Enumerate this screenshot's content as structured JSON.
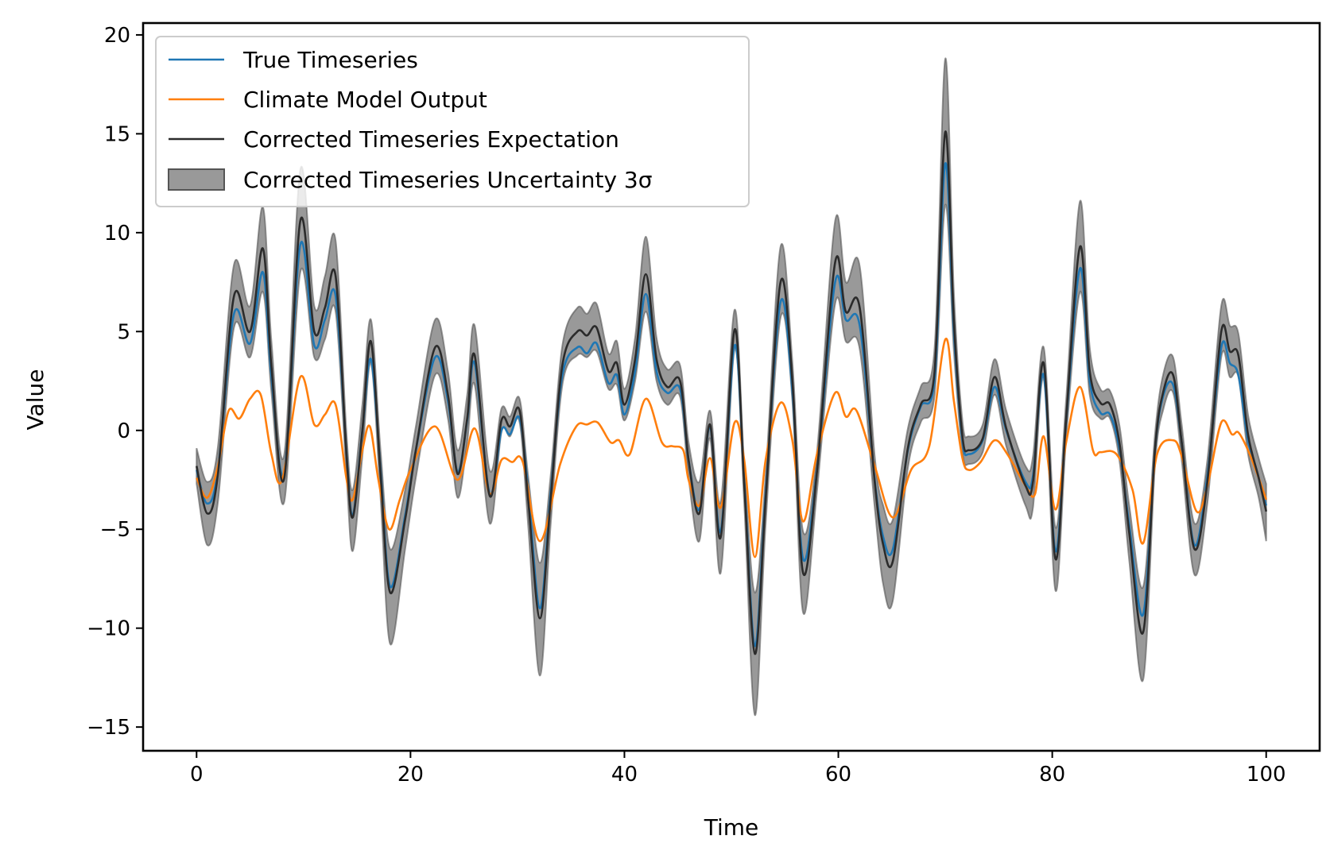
{
  "chart_data": {
    "type": "line",
    "xlabel": "Time",
    "ylabel": "Value",
    "xlim": [
      -5,
      105
    ],
    "ylim": [
      -16.2,
      20.6
    ],
    "xticks": [
      0,
      20,
      40,
      60,
      80,
      100
    ],
    "xtick_labels": [
      "0",
      "20",
      "40",
      "60",
      "80",
      "100"
    ],
    "yticks": [
      -15,
      -10,
      -5,
      0,
      5,
      10,
      15,
      20
    ],
    "ytick_labels": [
      "−15",
      "−10",
      "−5",
      "0",
      "5",
      "10",
      "15",
      "20"
    ],
    "grid": false,
    "legend_position": "top-left",
    "legend": [
      {
        "label": "True Timeseries",
        "kind": "line",
        "color": "#1f77b4"
      },
      {
        "label": "Climate Model Output",
        "kind": "line",
        "color": "#ff7f0e"
      },
      {
        "label": "Corrected Timeseries Expectation",
        "kind": "line",
        "color": "#2b2b2b"
      },
      {
        "label": "Corrected Timeseries Uncertainty 3σ",
        "kind": "band",
        "color": "#808080"
      }
    ],
    "series": [
      {
        "name": "True Timeseries",
        "color": "#1f77b4",
        "x": [
          0,
          1,
          2,
          3.5,
          5,
          6.2,
          7,
          8.2,
          9.7,
          11,
          12,
          13,
          14,
          14.6,
          15.5,
          16.3,
          17.2,
          18.1,
          19.5,
          20.5,
          22.3,
          23.5,
          24.4,
          25.3,
          26,
          27.4,
          28.5,
          29.3,
          30.2,
          31,
          32.1,
          33.1,
          34.2,
          35.6,
          36.5,
          37.4,
          38.5,
          39.3,
          40,
          41,
          42,
          43,
          44,
          45.2,
          46,
          47,
          48,
          49,
          50.3,
          51.2,
          52.2,
          53.2,
          54.6,
          55.7,
          56.7,
          58,
          59.7,
          60.7,
          62,
          63.4,
          64.2,
          65.1,
          66.5,
          67.7,
          69,
          70,
          70.8,
          71.6,
          72.2,
          73.5,
          74.6,
          75.7,
          77.5,
          78.2,
          79.2,
          80.3,
          81.3,
          82.6,
          83.5,
          84.5,
          85.4,
          86.3,
          87.2,
          88.5,
          89.6,
          90.4,
          91.3,
          92.1,
          93.3,
          94.5,
          95.8,
          96.6,
          97.4,
          98.3,
          99.3,
          100
        ],
        "y": [
          -2,
          -3.7,
          -2,
          5.9,
          4.4,
          8,
          2.7,
          -2.1,
          9.4,
          4.3,
          5.6,
          6.8,
          -1,
          -4.3,
          0,
          3.6,
          -2,
          -7.9,
          -4.3,
          -1,
          3.7,
          1.5,
          -2.1,
          0.5,
          3.4,
          -3.2,
          0,
          -0.2,
          0.6,
          -3,
          -9,
          -3.2,
          2.8,
          4.2,
          3.9,
          4.4,
          2.4,
          2.8,
          0.8,
          3,
          6.9,
          3,
          1.9,
          2.1,
          -1.5,
          -4,
          0.2,
          -5.1,
          4.3,
          -2.5,
          -10.9,
          -3.2,
          6.5,
          2,
          -6.5,
          -2,
          7.5,
          5.6,
          5.3,
          -2.5,
          -5.4,
          -6,
          -1,
          1.2,
          2.6,
          13.5,
          5,
          -0.5,
          -1.2,
          -0.5,
          2.2,
          0,
          -2.6,
          -2.3,
          2.8,
          -6.1,
          0.5,
          8.2,
          2.5,
          0.9,
          0.8,
          -1,
          -4.8,
          -9.3,
          -1,
          1.8,
          2.3,
          -0.6,
          -5.8,
          -2.3,
          4.2,
          3.4,
          2.8,
          -0.5,
          -2.4,
          -3.8
        ]
      },
      {
        "name": "Climate Model Output",
        "color": "#ff7f0e",
        "x": [
          0,
          1,
          2,
          3,
          4,
          5,
          6,
          7,
          8,
          9.7,
          11,
          12,
          13,
          14,
          14.6,
          15.5,
          16.2,
          17,
          18,
          19,
          20,
          22.3,
          24.4,
          26,
          27.4,
          28.5,
          29.5,
          30.5,
          32.1,
          34,
          35.5,
          36.5,
          37.5,
          38.7,
          39.5,
          40.5,
          42,
          43.5,
          44.5,
          45.5,
          46,
          47,
          48,
          49,
          50.3,
          51.2,
          52.2,
          53.2,
          54.6,
          55.7,
          56.7,
          58,
          59.7,
          60.7,
          61.7,
          63.4,
          65.1,
          66.8,
          68.5,
          70,
          70.8,
          71.6,
          72.2,
          73.3,
          74.6,
          75.8,
          77.5,
          78.4,
          79.2,
          80.3,
          81.3,
          82.6,
          83.8,
          84.5,
          86,
          87.5,
          88.5,
          89.8,
          91.3,
          92.1,
          93.5,
          94.5,
          95.8,
          96.8,
          97.4,
          98.3,
          99.3,
          100
        ],
        "y": [
          -2.4,
          -3.4,
          -1.8,
          1,
          0.6,
          1.6,
          1.8,
          -1.2,
          -2.5,
          2.7,
          0.3,
          0.8,
          1.3,
          -2.4,
          -3.5,
          -1,
          0.2,
          -2.5,
          -5,
          -3.5,
          -2,
          0.2,
          -2.5,
          0.1,
          -3.2,
          -1.5,
          -1.6,
          -1.6,
          -5.6,
          -1.7,
          0.2,
          0.3,
          0.4,
          -0.6,
          -0.5,
          -1.2,
          1.6,
          -0.6,
          -0.8,
          -1,
          -2.5,
          -3.8,
          -1.4,
          -3.9,
          0.4,
          -1.5,
          -6.4,
          -1.5,
          1.4,
          -0.5,
          -4.6,
          -1.2,
          1.9,
          0.7,
          1,
          -1.8,
          -4.4,
          -2,
          -0.8,
          4.6,
          1.5,
          -1.4,
          -2,
          -1.6,
          -0.5,
          -1.2,
          -2.8,
          -3.2,
          -0.3,
          -4,
          -0.6,
          2.2,
          -1,
          -1.1,
          -1.2,
          -3,
          -5.7,
          -1.2,
          -0.5,
          -1.3,
          -4.1,
          -2.8,
          0.4,
          -0.2,
          -0.1,
          -1,
          -2.4,
          -3.5
        ]
      },
      {
        "name": "Corrected Timeseries Expectation",
        "color": "#2b2b2b",
        "x": [
          0,
          1,
          2,
          3.5,
          5,
          6.2,
          7,
          8.2,
          9.7,
          11,
          12,
          13,
          14,
          14.6,
          15.5,
          16.3,
          17.2,
          18.1,
          19.5,
          20.5,
          22.3,
          23.5,
          24.4,
          25.3,
          26,
          27.4,
          28.5,
          29.3,
          30.2,
          31,
          32.1,
          33.1,
          34.2,
          35.6,
          36.5,
          37.4,
          38.5,
          39.3,
          40,
          41,
          42,
          43,
          44,
          45.2,
          46,
          47,
          48,
          49,
          50.3,
          51.2,
          52.2,
          53.2,
          54.6,
          55.7,
          56.7,
          58,
          59.7,
          60.7,
          62,
          63.4,
          64.2,
          65.1,
          66.5,
          67.7,
          69,
          70,
          70.8,
          71.6,
          72.2,
          73.5,
          74.6,
          75.7,
          77.5,
          78.2,
          79.2,
          80.3,
          81.3,
          82.6,
          83.5,
          84.5,
          85.4,
          86.3,
          87.2,
          88.5,
          89.6,
          90.4,
          91.3,
          92.1,
          93.3,
          94.5,
          95.8,
          96.6,
          97.4,
          98.3,
          99.3,
          100
        ],
        "y": [
          -1.8,
          -4.2,
          -2.2,
          6.8,
          5,
          9.2,
          3.2,
          -2.4,
          10.6,
          5,
          6.2,
          7.8,
          -1.1,
          -4.4,
          0,
          4.5,
          -2.2,
          -8.2,
          -4.5,
          -1,
          4.2,
          1.8,
          -2.2,
          0.6,
          3.8,
          -3.3,
          0.5,
          0.2,
          1,
          -3.5,
          -9.5,
          -3.5,
          3.3,
          5,
          4.8,
          5.2,
          3,
          3.4,
          1.3,
          3.6,
          7.9,
          3.6,
          2.2,
          2.5,
          -1.5,
          -4.2,
          0.3,
          -5.4,
          5.1,
          -2.7,
          -11.3,
          -3.5,
          7.5,
          2.5,
          -7.2,
          -2.1,
          8.5,
          6,
          6.2,
          -2.6,
          -5.8,
          -6.6,
          -0.9,
          1.3,
          3,
          15.1,
          5.5,
          -0.3,
          -1,
          -0.4,
          2.7,
          0.1,
          -2.8,
          -2.6,
          3.4,
          -6.5,
          0.6,
          9.3,
          3,
          1.4,
          1.3,
          -0.7,
          -5.2,
          -10.2,
          -1,
          2,
          2.8,
          -0.6,
          -6,
          -2.6,
          5,
          4,
          3.8,
          -0.2,
          -2.4,
          -4.1
        ]
      }
    ],
    "band": {
      "name": "Corrected Timeseries Uncertainty 3σ",
      "color": "#808080",
      "x": [
        0,
        1,
        2,
        3.5,
        5,
        6.2,
        7,
        8.2,
        9.7,
        11,
        12,
        13,
        14,
        14.6,
        15.5,
        16.3,
        17.2,
        18.1,
        19.5,
        20.5,
        22.3,
        23.5,
        24.4,
        25.3,
        26,
        27.4,
        28.5,
        29.3,
        30.2,
        31,
        32.1,
        33.1,
        34.2,
        35.6,
        36.5,
        37.4,
        38.5,
        39.3,
        40,
        41,
        42,
        43,
        44,
        45.2,
        46,
        47,
        48,
        49,
        50.3,
        51.2,
        52.2,
        53.2,
        54.6,
        55.7,
        56.7,
        58,
        59.7,
        60.7,
        62,
        63.4,
        64.2,
        65.1,
        66.5,
        67.7,
        69,
        70,
        70.8,
        71.6,
        72.2,
        73.5,
        74.6,
        75.7,
        77.5,
        78.2,
        79.2,
        80.3,
        81.3,
        82.6,
        83.5,
        84.5,
        85.4,
        86.3,
        87.2,
        88.5,
        89.6,
        90.4,
        91.3,
        92.1,
        93.3,
        94.5,
        95.8,
        96.6,
        97.4,
        98.3,
        99.3,
        100
      ],
      "upper": [
        -0.9,
        -2.6,
        -0.8,
        8.4,
        6.3,
        11.3,
        4.5,
        -1.2,
        13.2,
        6.3,
        7.8,
        9.6,
        0,
        -3,
        1.3,
        5.6,
        -1,
        -6,
        -3,
        0.2,
        5.6,
        3,
        -1,
        1.8,
        5.3,
        -2,
        1.1,
        0.7,
        1.6,
        -2.3,
        -6.7,
        -2.3,
        4.3,
        6.2,
        5.9,
        6.4,
        3.9,
        4.5,
        2.1,
        4.7,
        9.8,
        4.7,
        3.1,
        3.3,
        -0.6,
        -2.6,
        1,
        -3.6,
        6.1,
        -1.7,
        -8.2,
        -2.3,
        9.3,
        3.5,
        -5.1,
        -1.1,
        10.6,
        7.5,
        8.3,
        -1.3,
        -3.8,
        -4.5,
        0.1,
        2.2,
        4.2,
        18.8,
        7,
        0.5,
        -0.3,
        0.3,
        3.6,
        1,
        -1.8,
        -1.3,
        4.2,
        -4.9,
        1.6,
        11.6,
        4.2,
        2.1,
        2,
        0.2,
        -3.8,
        -7.9,
        -0.2,
        2.9,
        3.7,
        0.3,
        -4.7,
        -1.5,
        6.3,
        5.3,
        4.9,
        0.8,
        -1.4,
        -2.7
      ],
      "lower": [
        -2.7,
        -5.8,
        -3.6,
        5.2,
        3.7,
        7,
        1.9,
        -3.6,
        8,
        3.7,
        4.6,
        6,
        -2.2,
        -6.1,
        -1.3,
        3.4,
        -3.4,
        -10.8,
        -6,
        -2.4,
        2.8,
        0.6,
        -3.4,
        -0.6,
        2.3,
        -4.7,
        -0.1,
        -0.3,
        0.4,
        -4.8,
        -12.4,
        -4.8,
        2.3,
        3.8,
        3.7,
        4,
        2.1,
        2.3,
        0.5,
        2.5,
        6,
        2.5,
        1.3,
        1.7,
        -2.4,
        -5.6,
        -0.4,
        -7.2,
        4.1,
        -3.7,
        -14.4,
        -4.8,
        5.7,
        1.5,
        -9.2,
        -3.1,
        6.4,
        4.5,
        4.1,
        -3.9,
        -7.8,
        -8.6,
        -1.9,
        0.4,
        1.8,
        11.4,
        4,
        -1.1,
        -1.7,
        -1.1,
        1.8,
        -0.8,
        -3.8,
        -3.9,
        2.6,
        -8.1,
        -0.4,
        7,
        1.8,
        0.6,
        0.6,
        -1.6,
        -6.6,
        -12.6,
        -1.8,
        1.1,
        1.9,
        -1.5,
        -7.3,
        -3.7,
        3.7,
        2.7,
        2.7,
        -1.2,
        -3.4,
        -5.6
      ]
    }
  }
}
